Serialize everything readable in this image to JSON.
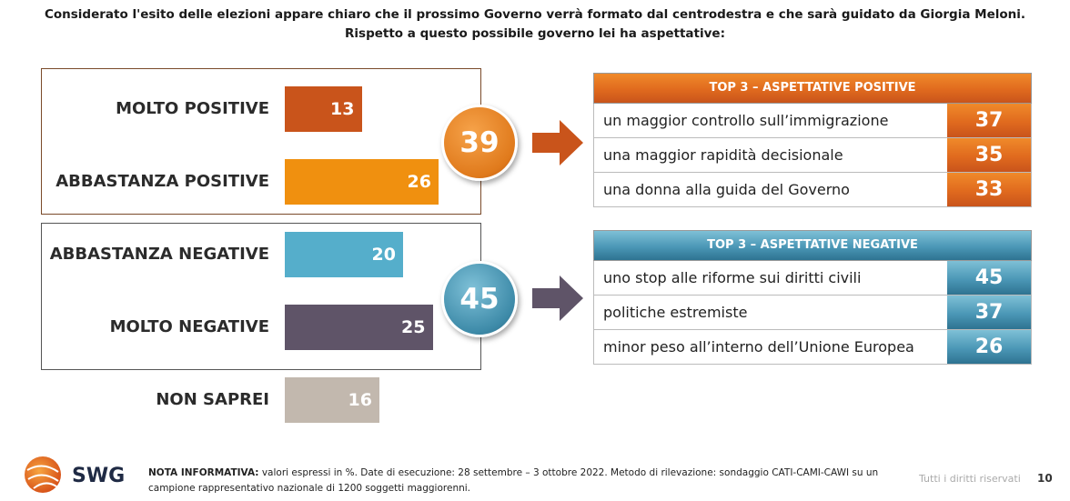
{
  "title": {
    "line1": "Considerato l'esito delle elezioni appare chiaro che il prossimo Governo verrà formato dal centrodestra e che sarà guidato da Giorgia Meloni.",
    "line2": "Rispetto a questo possibile governo lei ha aspettative:"
  },
  "chart_data": {
    "type": "bar",
    "orientation": "horizontal",
    "categories": [
      "MOLTO POSITIVE",
      "ABBASTANZA POSITIVE",
      "ABBASTANZA NEGATIVE",
      "MOLTO NEGATIVE",
      "NON SAPREI"
    ],
    "values": [
      13,
      26,
      20,
      25,
      16
    ],
    "labels": [
      "13",
      "26",
      "20",
      "25",
      "16"
    ],
    "colors": [
      "#c9541b",
      "#f0900f",
      "#55aecb",
      "#5f5468",
      "#c2b8ae"
    ],
    "groups": [
      {
        "categories": [
          "MOLTO POSITIVE",
          "ABBASTANZA POSITIVE"
        ],
        "total": "39",
        "color": "#e07a1c"
      },
      {
        "categories": [
          "ABBASTANZA NEGATIVE",
          "MOLTO NEGATIVE"
        ],
        "total": "45",
        "color": "#3d8aa8"
      }
    ],
    "xlim": [
      0,
      45
    ]
  },
  "top_positive": {
    "header": "TOP 3 – ASPETTATIVE POSITIVE",
    "color": "#e06a1e",
    "rows": [
      {
        "label": "un maggior controllo sull’immigrazione",
        "value": "37"
      },
      {
        "label": "una maggior rapidità decisionale",
        "value": "35"
      },
      {
        "label": "una donna alla guida del Governo",
        "value": "33"
      }
    ]
  },
  "top_negative": {
    "header": "TOP 3 – ASPETTATIVE NEGATIVE",
    "color": "#4b97b6",
    "rows": [
      {
        "label": "uno stop alle riforme sui diritti civili",
        "value": "45"
      },
      {
        "label": "politiche estremiste",
        "value": "37"
      },
      {
        "label": "minor peso all’interno dell’Unione Europea",
        "value": "26"
      }
    ]
  },
  "footer": {
    "note_label": "NOTA INFORMATIVA:",
    "note_text": "valori espressi in %. Date di esecuzione: 28 settembre – 3 ottobre 2022. Metodo di rilevazione: sondaggio CATI-CAMI-CAWI su un campione rappresentativo nazionale di 1200 soggetti maggiorenni.",
    "logo": "SWG",
    "rights": "Tutti i diritti riservati",
    "page": "10"
  }
}
